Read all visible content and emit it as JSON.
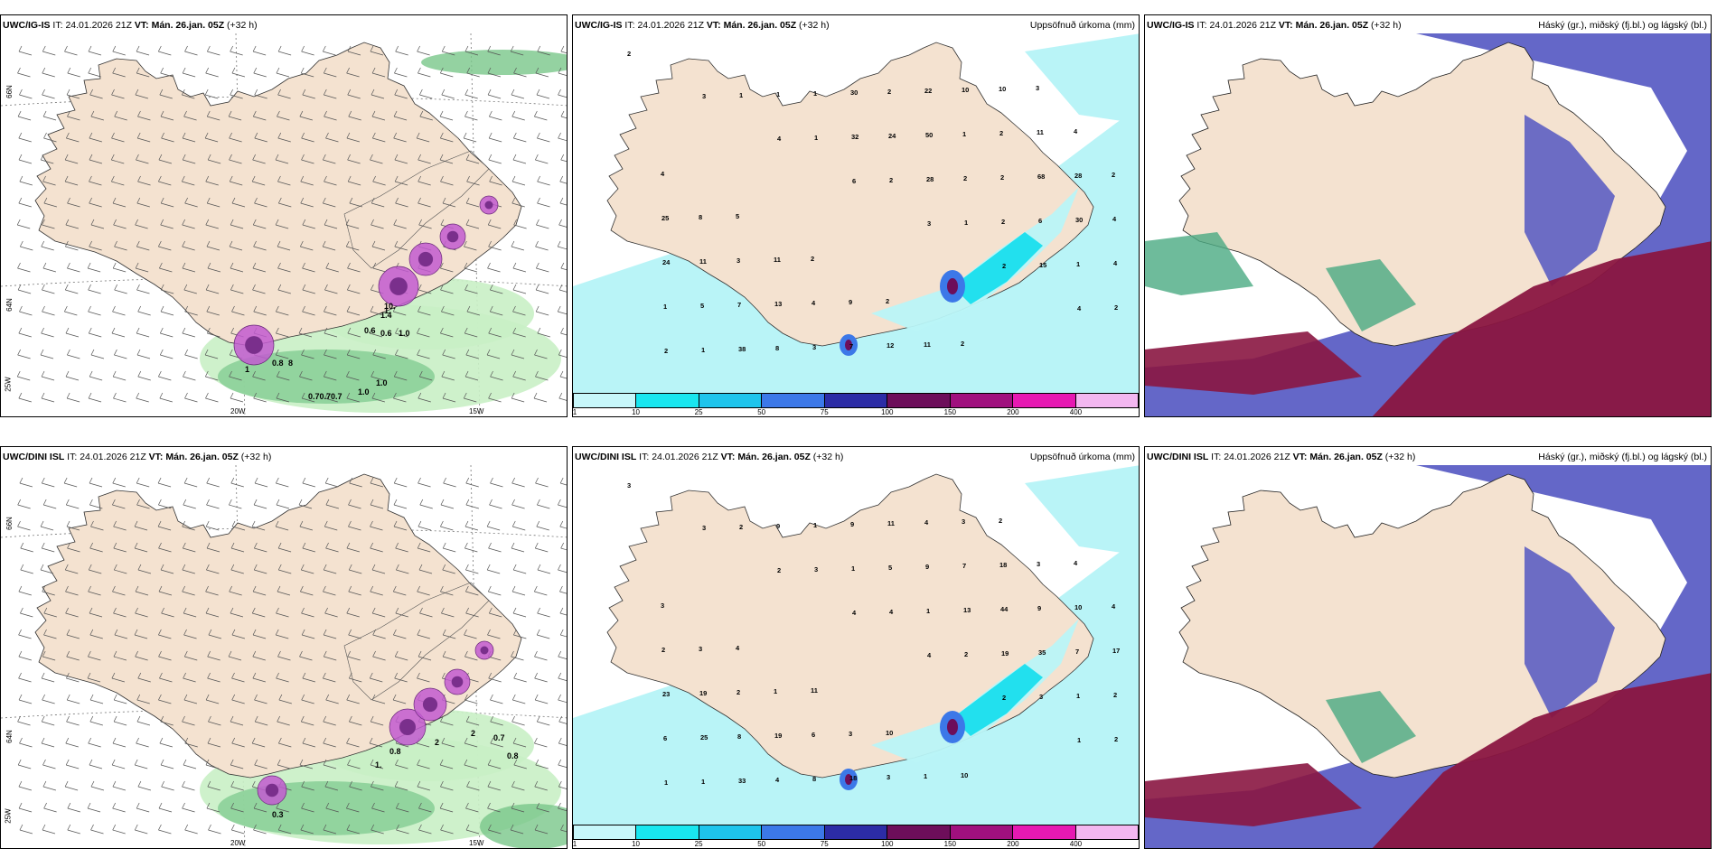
{
  "rows": [
    {
      "model": "UWC/IG-IS",
      "panels": [
        {
          "it_label": "IT:",
          "it_value": "24.01.2026 21Z",
          "vt_label": "VT:",
          "vt_value": "Mán. 26.jan. 05Z",
          "lead": "(+32 h)",
          "right_title": "",
          "lat_labels": [
            "66N",
            "64N",
            "25W"
          ],
          "lon_labels": [
            "20W",
            "15W"
          ],
          "values": [
            "1.0",
            "0.8",
            "0.6",
            "0.6",
            "1.0",
            "0.70.70.7",
            "1.0",
            "10.",
            "1.",
            "1.4",
            "1",
            "8"
          ]
        },
        {
          "it_label": "IT:",
          "it_value": "24.01.2026 21Z",
          "vt_label": "VT:",
          "vt_value": "Mán. 26.jan. 05Z",
          "lead": "(+32 h)",
          "right_title": "Uppsöfnuð úrkoma (mm)",
          "values": [
            "2",
            "3",
            "4",
            "6",
            "3",
            "2",
            "4",
            "2",
            "1",
            "1",
            "2",
            "1",
            "15",
            "2",
            "1",
            "1",
            "32",
            "28",
            "2",
            "1",
            "1",
            "38",
            "1",
            "24",
            "2",
            "6",
            "4",
            "5",
            "8",
            "30",
            "50",
            "2",
            "30",
            "24",
            "7",
            "3",
            "2",
            "1",
            "68",
            "4",
            "11",
            "13",
            "7",
            "22",
            "2",
            "28",
            "25",
            "3",
            "4",
            "12",
            "10",
            "11",
            "2",
            "8",
            "11",
            "9",
            "11",
            "10",
            "4",
            "4",
            "5",
            "2",
            "2",
            "2",
            "3"
          ]
        },
        {
          "it_label": "IT:",
          "it_value": "24.01.2026 21Z",
          "vt_label": "VT:",
          "vt_value": "Mán. 26.jan. 05Z",
          "lead": "(+32 h)",
          "right_title": "Háský (gr.), miðský (fj.bl.) og lágský (bl.)",
          "values": []
        }
      ]
    },
    {
      "model": "UWC/DINI ISL",
      "panels": [
        {
          "it_label": "IT:",
          "it_value": "24.01.2026 21Z",
          "vt_label": "VT:",
          "vt_value": "Mán. 26.jan. 05Z",
          "lead": "(+32 h)",
          "right_title": "",
          "lat_labels": [
            "66N",
            "64N",
            "25W"
          ],
          "lon_labels": [
            "20W",
            "15W"
          ],
          "values": [
            "2",
            "2",
            "0.7",
            "0.8",
            "0.8",
            "1.",
            "0.3"
          ]
        },
        {
          "it_label": "IT:",
          "it_value": "24.01.2026 21Z",
          "vt_label": "VT:",
          "vt_value": "Mán. 26.jan. 05Z",
          "lead": "(+32 h)",
          "right_title": "Uppsöfnuð úrkoma (mm)",
          "values": [
            "3",
            "3",
            "2",
            "4",
            "4",
            "2",
            "1",
            "1",
            "2",
            "3",
            "4",
            "2",
            "3",
            "2",
            "1",
            "9",
            "1",
            "1",
            "19",
            "1",
            "6",
            "33",
            "1",
            "5",
            "13",
            "35",
            "2",
            "25",
            "4",
            "9",
            "9",
            "44",
            "7",
            "23",
            "8",
            "8",
            "11",
            "7",
            "9",
            "17",
            "19",
            "19",
            "18",
            "4",
            "18",
            "10",
            "2",
            "2",
            "6",
            "3",
            "3",
            "3",
            "4",
            "3",
            "1",
            "3",
            "1",
            "2",
            "4",
            "3",
            "4",
            "11",
            "10",
            "10"
          ]
        },
        {
          "it_label": "IT:",
          "it_value": "24.01.2026 21Z",
          "vt_label": "VT:",
          "vt_value": "Mán. 26.jan. 05Z",
          "lead": "(+32 h)",
          "right_title": "Háský (gr.), miðský (fj.bl.) og lágský (bl.)",
          "values": []
        }
      ]
    }
  ],
  "colorbar": {
    "ticks": [
      "1",
      "10",
      "25",
      "50",
      "75",
      "100",
      "150",
      "200",
      "400"
    ],
    "colors": [
      "#c7f7fa",
      "#19e6ef",
      "#1ec4ec",
      "#3c78e8",
      "#2c2ca6",
      "#6d0e5a",
      "#a0107e",
      "#e619b2",
      "#f3b7f0"
    ]
  },
  "colors": {
    "land": "#f4e2d0",
    "precip_light": "#b9f4f7",
    "precip_cyan": "#22e0ee",
    "green_light": "#c9efc5",
    "green_mid": "#79c78a",
    "magenta": "#c25ad0",
    "low_cloud": "#5357c2",
    "mid_cloud": "#8a1641",
    "high_cloud": "#4aaa82"
  }
}
